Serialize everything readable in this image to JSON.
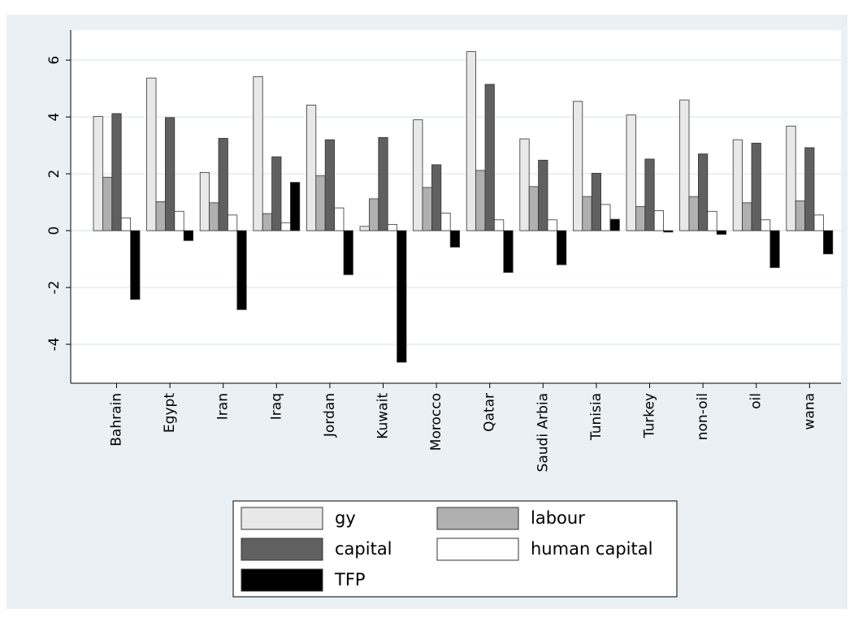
{
  "chart_data": {
    "type": "bar",
    "categories": [
      "Bahrain",
      "Egypt",
      "Iran",
      "Iraq",
      "Jordan",
      "Kuwait",
      "Morocco",
      "Qatar",
      "Saudi Arbia",
      "Tunisia",
      "Turkey",
      "non-oil",
      "oil",
      "wana"
    ],
    "series": [
      {
        "name": "gy",
        "color": "#e8e8e8",
        "values": [
          4.02,
          5.37,
          2.05,
          5.42,
          4.42,
          0.15,
          3.9,
          6.3,
          3.23,
          4.55,
          4.07,
          4.6,
          3.2,
          3.68
        ]
      },
      {
        "name": "labour",
        "color": "#b0b0b0",
        "values": [
          1.88,
          1.02,
          0.98,
          0.6,
          1.93,
          1.12,
          1.52,
          2.12,
          1.55,
          1.2,
          0.85,
          1.2,
          0.98,
          1.05
        ]
      },
      {
        "name": "capital",
        "color": "#606060",
        "values": [
          4.12,
          3.98,
          3.25,
          2.6,
          3.2,
          3.28,
          2.32,
          5.15,
          2.48,
          2.02,
          2.52,
          2.7,
          3.08,
          2.92
        ]
      },
      {
        "name": "human capital",
        "color": "#ffffff",
        "values": [
          0.45,
          0.68,
          0.55,
          0.28,
          0.8,
          0.22,
          0.62,
          0.38,
          0.38,
          0.92,
          0.7,
          0.68,
          0.38,
          0.55
        ]
      },
      {
        "name": "TFP",
        "color": "#000000",
        "values": [
          -2.42,
          -0.35,
          -2.78,
          1.7,
          -1.55,
          -4.63,
          -0.58,
          -1.47,
          -1.2,
          0.4,
          -0.05,
          -0.13,
          -1.3,
          -0.82
        ]
      }
    ],
    "ylim": [
      -5.37,
      7.06
    ],
    "yticks": [
      -4,
      -2,
      0,
      2,
      4,
      6
    ],
    "grid": true,
    "legend": "bottom"
  }
}
